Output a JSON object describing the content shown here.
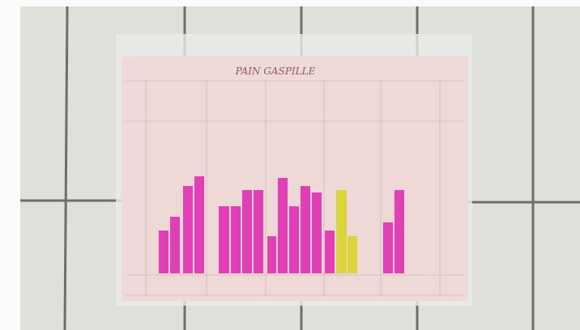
{
  "photo": {
    "title": "PAIN GASPILLE"
  }
}
